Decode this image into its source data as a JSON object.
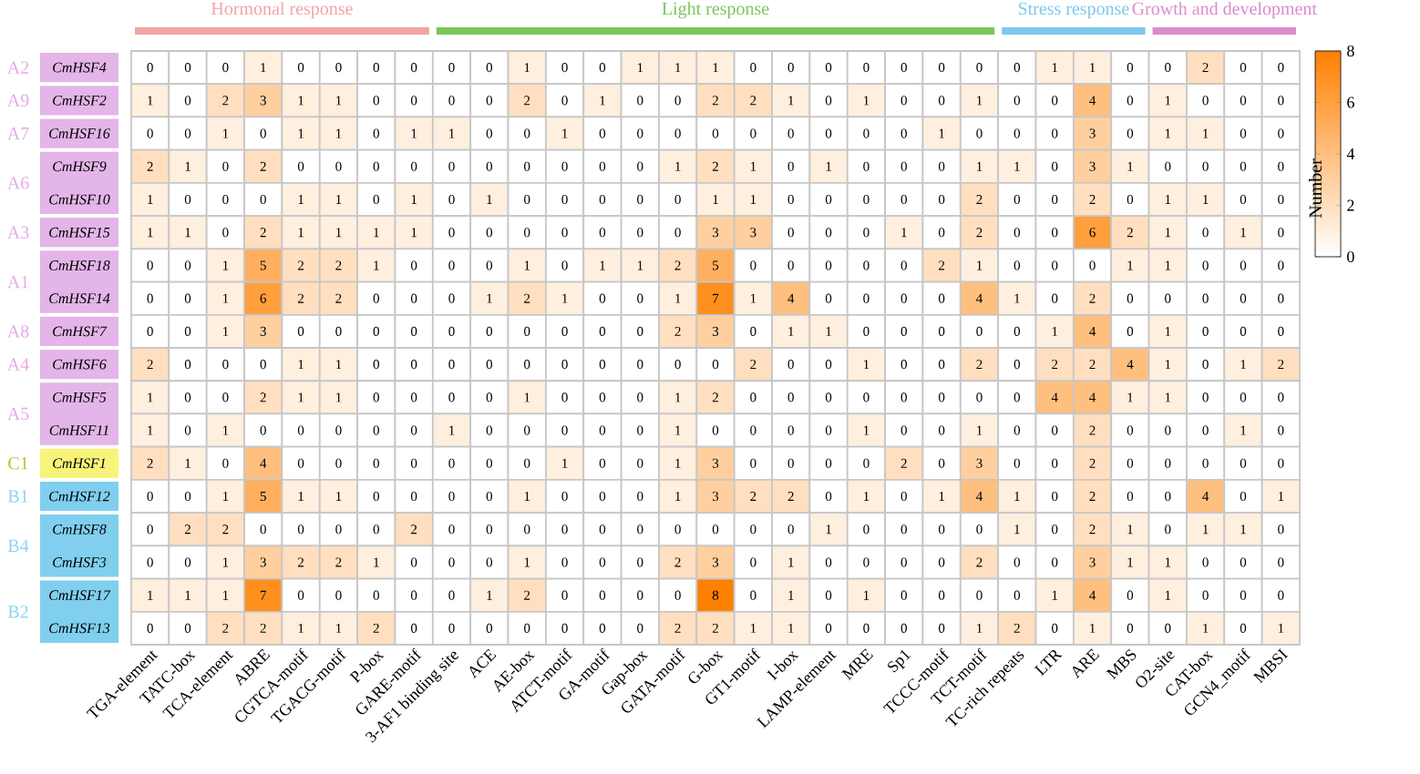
{
  "chart_data": {
    "type": "heatmap",
    "categories": [
      "TGA-element",
      "TATC-box",
      "TCA-element",
      "ABRE",
      "CGTCA-motif",
      "TGACG-motif",
      "P-box",
      "GARE-motif",
      "3-AF1 binding site",
      "ACE",
      "AE-box",
      "ATCT-motif",
      "GA-motif",
      "Gap-box",
      "GATA-motif",
      "G-box",
      "GT1-motif",
      "I-box",
      "LAMP-element",
      "MRE",
      "Sp1",
      "TCCC-motif",
      "TCT-motif",
      "TC-rich repeats",
      "LTR",
      "ARE",
      "MBS",
      "O2-site",
      "CAT-box",
      "GCN4_motif",
      "MBSI"
    ],
    "y_categories": [
      "CmHSF4",
      "CmHSF2",
      "CmHSF16",
      "CmHSF9",
      "CmHSF10",
      "CmHSF15",
      "CmHSF18",
      "CmHSF14",
      "CmHSF7",
      "CmHSF6",
      "CmHSF5",
      "CmHSF11",
      "CmHSF1",
      "CmHSF12",
      "CmHSF8",
      "CmHSF3",
      "CmHSF17",
      "CmHSF13"
    ],
    "cells": [
      [
        0,
        0,
        0,
        1,
        0,
        0,
        0,
        0,
        0,
        0,
        1,
        0,
        0,
        1,
        1,
        1,
        0,
        0,
        0,
        0,
        0,
        0,
        0,
        0,
        1,
        1,
        0,
        0,
        2,
        0,
        0
      ],
      [
        1,
        0,
        2,
        3,
        1,
        1,
        0,
        0,
        0,
        0,
        2,
        0,
        1,
        0,
        0,
        2,
        2,
        1,
        0,
        1,
        0,
        0,
        1,
        0,
        0,
        4,
        0,
        1,
        0,
        0,
        0
      ],
      [
        0,
        0,
        1,
        0,
        1,
        1,
        0,
        1,
        1,
        0,
        0,
        1,
        0,
        0,
        0,
        0,
        0,
        0,
        0,
        0,
        0,
        1,
        0,
        0,
        0,
        3,
        0,
        1,
        1,
        0,
        0
      ],
      [
        2,
        1,
        0,
        2,
        0,
        0,
        0,
        0,
        0,
        0,
        0,
        0,
        0,
        0,
        1,
        2,
        1,
        0,
        1,
        0,
        0,
        0,
        1,
        1,
        0,
        3,
        1,
        0,
        0,
        0,
        0
      ],
      [
        1,
        0,
        0,
        0,
        1,
        1,
        0,
        1,
        0,
        1,
        0,
        0,
        0,
        0,
        0,
        1,
        1,
        0,
        0,
        0,
        0,
        0,
        2,
        0,
        0,
        2,
        0,
        1,
        1,
        0,
        0
      ],
      [
        1,
        1,
        0,
        2,
        1,
        1,
        1,
        1,
        0,
        0,
        0,
        0,
        0,
        0,
        0,
        3,
        3,
        0,
        0,
        0,
        1,
        0,
        2,
        0,
        0,
        6,
        2,
        1,
        0,
        1,
        0
      ],
      [
        0,
        0,
        1,
        5,
        2,
        2,
        1,
        0,
        0,
        0,
        1,
        0,
        1,
        1,
        2,
        5,
        0,
        0,
        0,
        0,
        0,
        2,
        1,
        0,
        0,
        0,
        1,
        1,
        0,
        0,
        0
      ],
      [
        0,
        0,
        1,
        6,
        2,
        2,
        0,
        0,
        0,
        1,
        2,
        1,
        0,
        0,
        1,
        7,
        1,
        4,
        0,
        0,
        0,
        0,
        4,
        1,
        0,
        2,
        0,
        0,
        0,
        0,
        0
      ],
      [
        0,
        0,
        1,
        3,
        0,
        0,
        0,
        0,
        0,
        0,
        0,
        0,
        0,
        0,
        2,
        3,
        0,
        1,
        1,
        0,
        0,
        0,
        0,
        0,
        1,
        4,
        0,
        1,
        0,
        0,
        0
      ],
      [
        2,
        0,
        0,
        0,
        1,
        1,
        0,
        0,
        0,
        0,
        0,
        0,
        0,
        0,
        0,
        0,
        2,
        0,
        0,
        1,
        0,
        0,
        2,
        0,
        2,
        2,
        4,
        1,
        0,
        1,
        2
      ],
      [
        1,
        0,
        0,
        2,
        1,
        1,
        0,
        0,
        0,
        0,
        1,
        0,
        0,
        0,
        1,
        2,
        0,
        0,
        0,
        0,
        0,
        0,
        0,
        0,
        4,
        4,
        1,
        1,
        0,
        0,
        0
      ],
      [
        1,
        0,
        1,
        0,
        0,
        0,
        0,
        0,
        1,
        0,
        0,
        0,
        0,
        0,
        1,
        0,
        0,
        0,
        0,
        1,
        0,
        0,
        1,
        0,
        0,
        2,
        0,
        0,
        0,
        1,
        0
      ],
      [
        2,
        1,
        0,
        4,
        0,
        0,
        0,
        0,
        0,
        0,
        0,
        1,
        0,
        0,
        1,
        3,
        0,
        0,
        0,
        0,
        2,
        0,
        3,
        0,
        0,
        2,
        0,
        0,
        0,
        0,
        0
      ],
      [
        0,
        0,
        1,
        5,
        1,
        1,
        0,
        0,
        0,
        0,
        1,
        0,
        0,
        0,
        1,
        3,
        2,
        2,
        0,
        1,
        0,
        1,
        4,
        1,
        0,
        2,
        0,
        0,
        4,
        0,
        1
      ],
      [
        0,
        2,
        2,
        0,
        0,
        0,
        0,
        2,
        0,
        0,
        0,
        0,
        0,
        0,
        0,
        0,
        0,
        0,
        1,
        0,
        0,
        0,
        0,
        1,
        0,
        2,
        1,
        0,
        1,
        1,
        0
      ],
      [
        0,
        0,
        1,
        3,
        2,
        2,
        1,
        0,
        0,
        0,
        1,
        0,
        0,
        0,
        2,
        3,
        0,
        1,
        0,
        0,
        0,
        0,
        2,
        0,
        0,
        3,
        1,
        1,
        0,
        0,
        0
      ],
      [
        1,
        1,
        1,
        7,
        0,
        0,
        0,
        0,
        0,
        1,
        2,
        0,
        0,
        0,
        0,
        8,
        0,
        1,
        0,
        1,
        0,
        0,
        0,
        0,
        1,
        4,
        0,
        1,
        0,
        0,
        0
      ],
      [
        0,
        0,
        2,
        2,
        1,
        1,
        2,
        0,
        0,
        0,
        0,
        0,
        0,
        0,
        2,
        2,
        1,
        1,
        0,
        0,
        0,
        0,
        1,
        2,
        0,
        1,
        0,
        0,
        1,
        0,
        1
      ]
    ],
    "clim": [
      0,
      8
    ],
    "cticks": [
      0,
      2,
      4,
      6,
      8
    ],
    "clabel": "Number",
    "data_labels": true,
    "annotations": [
      "Hormonal response",
      "Light response",
      "Stress response",
      "Growth and development",
      "A2",
      "A9",
      "A7",
      "A6",
      "A3",
      "A1",
      "A8",
      "A4",
      "A5",
      "C1",
      "B1",
      "B4",
      "B2"
    ]
  }
}
